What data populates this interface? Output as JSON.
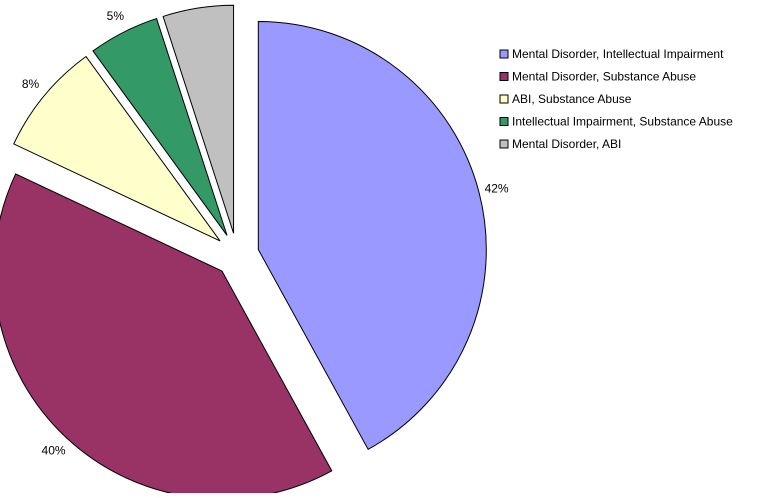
{
  "chart_data": {
    "type": "pie",
    "exploded": true,
    "legend_position": "top-right",
    "slices": [
      {
        "label": "Mental Disorder, Intellectual Impairment",
        "value": 42,
        "value_label": "42%",
        "color": "#9999FF"
      },
      {
        "label": "Mental Disorder, Substance Abuse",
        "value": 40,
        "value_label": "40%",
        "color": "#993366"
      },
      {
        "label": "ABI, Substance Abuse",
        "value": 8,
        "value_label": "8%",
        "color": "#FFFFCC"
      },
      {
        "label": "Intellectual Impairment, Substance Abuse",
        "value": 5,
        "value_label": "5%",
        "color": "#339966"
      },
      {
        "label": "Mental Disorder, ABI",
        "value": 5,
        "value_label": "5%",
        "color": "#C0C0C0"
      }
    ]
  }
}
